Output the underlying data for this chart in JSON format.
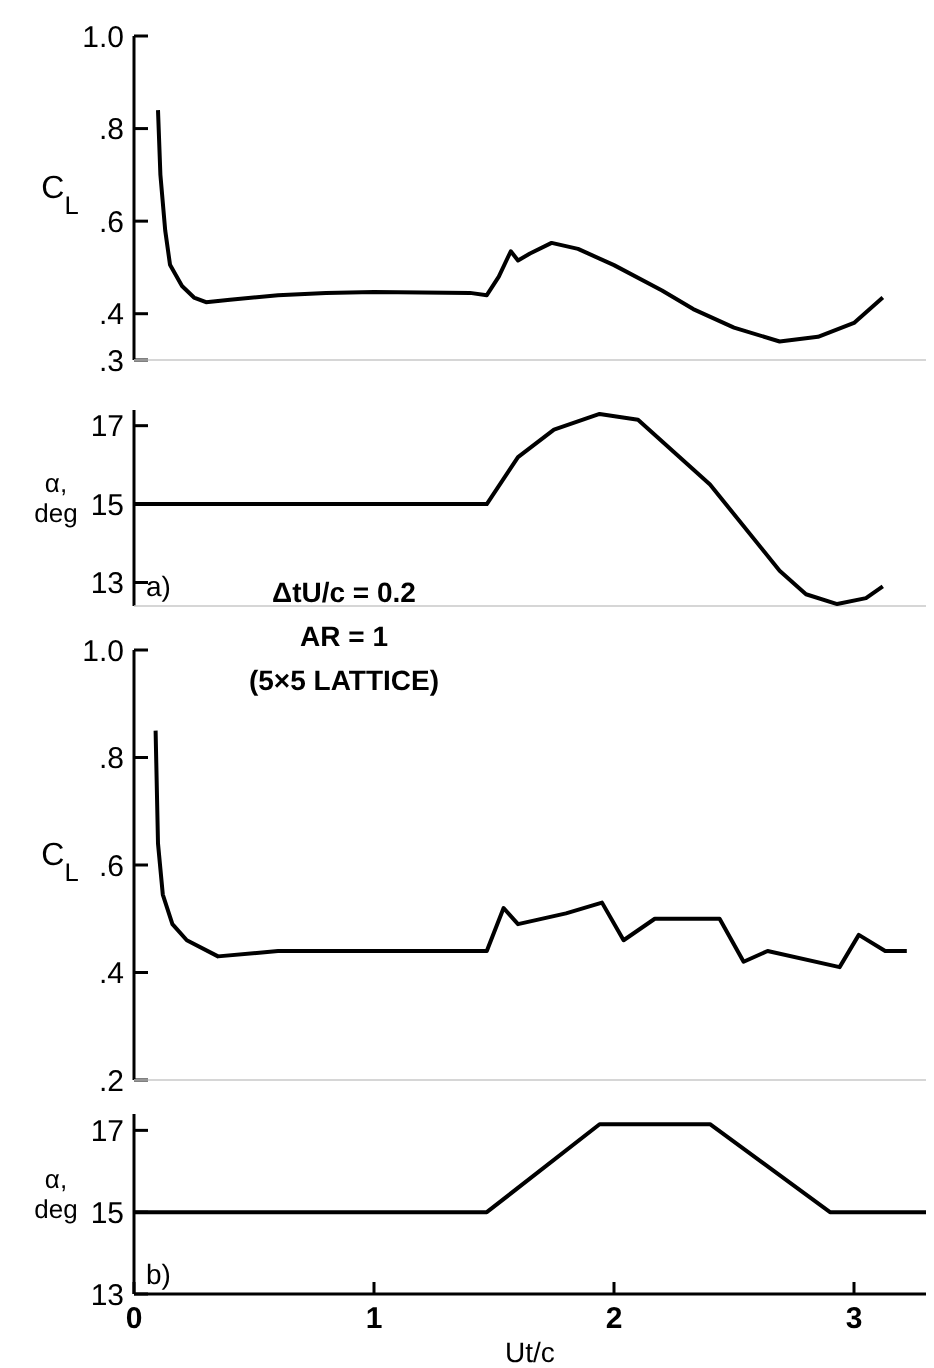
{
  "chart_data": [
    {
      "type": "line",
      "ylabel": "C$_{L}$",
      "xlim": [
        0,
        3.3
      ],
      "ylim": [
        0.3,
        1.0
      ],
      "yticks": [
        {
          "value": 1.0,
          "label": "1.0"
        },
        {
          "value": 0.8,
          "label": ".8"
        },
        {
          "value": 0.6,
          "label": ".6"
        },
        {
          "value": 0.4,
          "label": ".4"
        },
        {
          "value": 0.3,
          "label": ".3"
        }
      ],
      "tick_labels": "y",
      "series": [
        {
          "color": "#000000",
          "x": [
            0.1,
            0.11,
            0.13,
            0.15,
            0.2,
            0.25,
            0.3,
            0.4,
            0.6,
            0.8,
            1.0,
            1.2,
            1.4,
            1.47,
            1.52,
            1.57,
            1.6,
            1.65,
            1.74,
            1.85,
            2.0,
            2.2,
            2.33,
            2.5,
            2.69,
            2.85,
            3.0,
            3.12
          ],
          "values": [
            0.84,
            0.7,
            0.58,
            0.506,
            0.46,
            0.435,
            0.425,
            0.43,
            0.44,
            0.445,
            0.447,
            0.446,
            0.445,
            0.44,
            0.48,
            0.535,
            0.515,
            0.53,
            0.553,
            0.54,
            0.505,
            0.45,
            0.41,
            0.37,
            0.34,
            0.35,
            0.38,
            0.435
          ]
        }
      ]
    },
    {
      "type": "line",
      "ylabel": "α, deg",
      "xlim": [
        0,
        3.3
      ],
      "ylim": [
        12.4,
        17.4
      ],
      "yticks": [
        13,
        15,
        17
      ],
      "tick_labels": "y",
      "annotations": [
        "a)"
      ],
      "series": [
        {
          "color": "#000000",
          "x": [
            0,
            0.5,
            1.0,
            1.47,
            1.6,
            1.75,
            1.94,
            2.1,
            2.4,
            2.69,
            2.8,
            2.93,
            3.05,
            3.12
          ],
          "values": [
            15,
            15,
            15,
            15,
            16.2,
            16.9,
            17.3,
            17.15,
            15.5,
            13.3,
            12.7,
            12.45,
            12.6,
            12.9
          ]
        }
      ]
    },
    {
      "type": "line",
      "ylabel": "C$_{L}$",
      "xlim": [
        0,
        3.3
      ],
      "ylim": [
        0.2,
        1.0
      ],
      "yticks": [
        {
          "value": 1.0,
          "label": "1.0"
        },
        {
          "value": 0.8,
          "label": ".8"
        },
        {
          "value": 0.6,
          "label": ".6"
        },
        {
          "value": 0.4,
          "label": ".4"
        },
        {
          "value": 0.2,
          "label": ".2"
        }
      ],
      "tick_labels": "y",
      "annotations": [
        "ΔtU/c = 0.2",
        "AR = 1",
        "(5×5 LATTICE)"
      ],
      "series": [
        {
          "color": "#000000",
          "x": [
            0.09,
            0.1,
            0.12,
            0.16,
            0.22,
            0.35,
            0.6,
            1.0,
            1.47,
            1.54,
            1.6,
            1.8,
            1.95,
            2.04,
            2.17,
            2.44,
            2.54,
            2.64,
            2.94,
            3.02,
            3.13,
            3.22
          ],
          "values": [
            0.85,
            0.64,
            0.545,
            0.49,
            0.46,
            0.43,
            0.44,
            0.44,
            0.44,
            0.52,
            0.49,
            0.51,
            0.53,
            0.46,
            0.5,
            0.5,
            0.42,
            0.44,
            0.41,
            0.47,
            0.44,
            0.44
          ]
        }
      ]
    },
    {
      "type": "line",
      "ylabel": "α, deg",
      "xlabel": "Ut/c",
      "xlim": [
        0,
        3.3
      ],
      "ylim": [
        13,
        17.4
      ],
      "xticks": [
        0,
        1,
        2,
        3
      ],
      "yticks": [
        13,
        15,
        17
      ],
      "annotations": [
        "b)"
      ],
      "series": [
        {
          "color": "#000000",
          "x": [
            0,
            1.47,
            1.94,
            2.4,
            2.9,
            3.3
          ],
          "values": [
            15,
            15,
            17.15,
            17.15,
            15,
            15
          ]
        }
      ]
    }
  ]
}
